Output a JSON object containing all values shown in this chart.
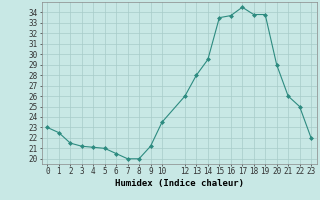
{
  "xlabel": "Humidex (Indice chaleur)",
  "x": [
    0,
    1,
    2,
    3,
    4,
    5,
    6,
    7,
    8,
    9,
    10,
    12,
    13,
    14,
    15,
    16,
    17,
    18,
    19,
    20,
    21,
    22,
    23
  ],
  "y": [
    23.0,
    22.5,
    21.5,
    21.2,
    21.1,
    21.0,
    20.5,
    20.0,
    20.0,
    21.2,
    23.5,
    26.0,
    28.0,
    29.5,
    33.5,
    33.7,
    34.5,
    33.8,
    33.8,
    29.0,
    26.0,
    25.0,
    22.0
  ],
  "xlim": [
    -0.5,
    23.5
  ],
  "ylim": [
    19.5,
    35.0
  ],
  "yticks": [
    20,
    21,
    22,
    23,
    24,
    25,
    26,
    27,
    28,
    29,
    30,
    31,
    32,
    33,
    34
  ],
  "xtick_labels": [
    "0",
    "1",
    "2",
    "3",
    "4",
    "5",
    "6",
    "7",
    "8",
    "9",
    "10",
    "12",
    "13",
    "14",
    "15",
    "16",
    "17",
    "18",
    "19",
    "20",
    "21",
    "22",
    "23"
  ],
  "line_color": "#2d8b80",
  "marker": "D",
  "markersize": 2.0,
  "bg_color": "#c8e8e5",
  "grid_color": "#a8ccc9",
  "tick_fontsize": 5.5,
  "label_fontsize": 6.5
}
